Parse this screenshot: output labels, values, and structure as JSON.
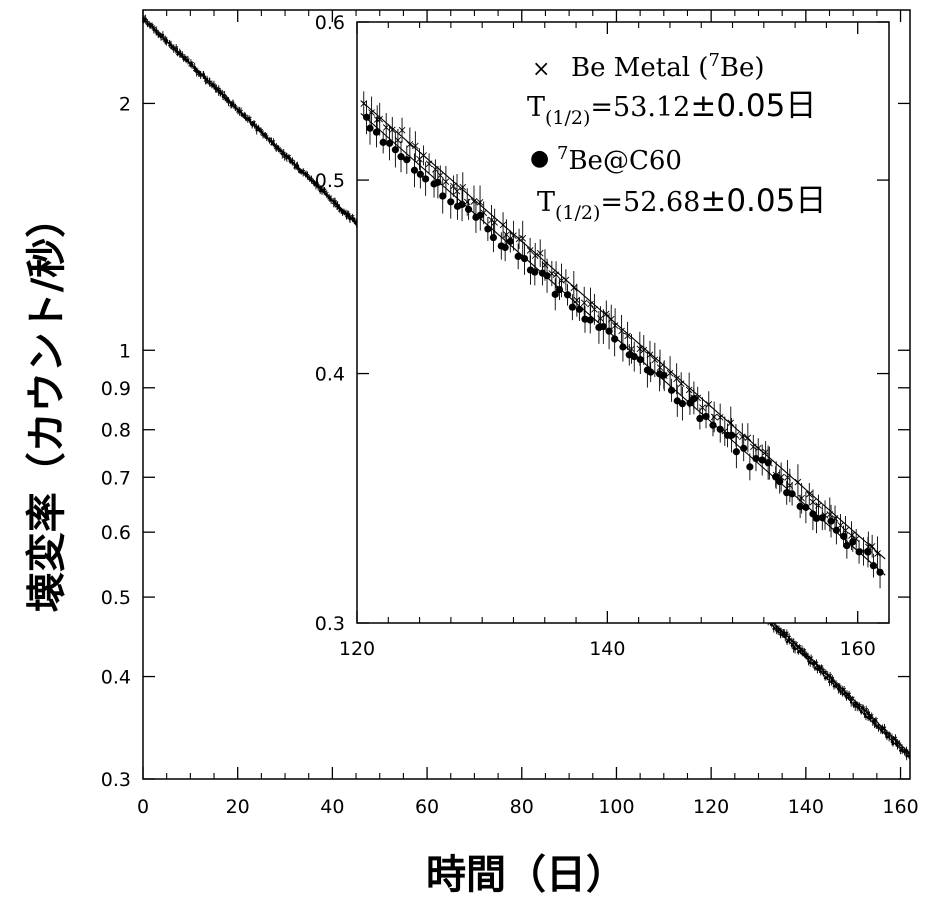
{
  "chart_data": [
    {
      "type": "scatter",
      "title": "",
      "xlabel": "時間（日）",
      "ylabel": "壊変率（カウント/秒）",
      "xlim": [
        0,
        162
      ],
      "ylim": [
        0.3,
        2.6
      ],
      "y_scale": "log",
      "x_ticks": [
        0,
        20,
        40,
        60,
        80,
        100,
        120,
        140,
        160
      ],
      "y_ticks": [
        0.3,
        0.4,
        0.5,
        0.6,
        0.7,
        0.8,
        0.9,
        1,
        2
      ],
      "x_tick_labels": [
        "0",
        "20",
        "40",
        "60",
        "80",
        "100",
        "120",
        "140",
        "160"
      ],
      "y_tick_labels": [
        "0.3",
        "0.4",
        "0.5",
        "0.6",
        "0.7",
        "0.8",
        "0.9",
        "1",
        "2"
      ],
      "fit_lines": [
        {
          "x": [
            0,
            162
          ],
          "y": [
            2.54,
            0.318
          ]
        },
        {
          "x": [
            0,
            162
          ],
          "y": [
            2.54,
            0.322
          ]
        }
      ],
      "series": [
        {
          "marker": "x",
          "x_start": 0,
          "x_end": 162,
          "y_start": 2.54,
          "y_end": 0.322
        },
        {
          "marker": "dot",
          "x_start": 0,
          "x_end": 162,
          "y_start": 2.54,
          "y_end": 0.318
        }
      ],
      "grid": false
    },
    {
      "type": "scatter",
      "title": "",
      "xlim": [
        120,
        162.5
      ],
      "ylim": [
        0.3,
        0.6
      ],
      "y_scale": "log",
      "x_ticks": [
        120,
        140,
        160
      ],
      "y_ticks": [
        0.3,
        0.4,
        0.5,
        0.6
      ],
      "x_tick_labels": [
        "120",
        "140",
        "160"
      ],
      "y_tick_labels": [
        "0.3",
        "0.4",
        "0.5",
        "0.6"
      ],
      "legend": {
        "placement": "top-right",
        "entries": [
          {
            "marker_glyph": "×",
            "label_pre": "Be Metal (",
            "label_sup": "7",
            "label_post": "Be)",
            "halflife_T": "T",
            "halflife_sub": "(1/2)",
            "halflife_value": "=53.12",
            "halflife_pm": "±0.05日"
          },
          {
            "marker_glyph": "●",
            "label_pre": "",
            "label_sup": "7",
            "label_post": "Be@C60",
            "halflife_T": "T",
            "halflife_sub": "(1/2)",
            "halflife_value": "=52.68",
            "halflife_pm": "±0.05日"
          }
        ]
      },
      "series": [
        {
          "marker": "x",
          "x_start": 120.5,
          "x_end": 162,
          "y_start": 0.546,
          "y_end": 0.322,
          "points": 95
        },
        {
          "marker": "dot",
          "x_start": 120.5,
          "x_end": 162,
          "y_start": 0.536,
          "y_end": 0.318,
          "points": 85
        }
      ],
      "fit_lines": [
        {
          "x": [
            120.3,
            162.2
          ],
          "y": [
            0.548,
            0.323
          ]
        },
        {
          "x": [
            120.3,
            162.2
          ],
          "y": [
            0.54,
            0.317
          ]
        }
      ],
      "grid": false
    }
  ]
}
